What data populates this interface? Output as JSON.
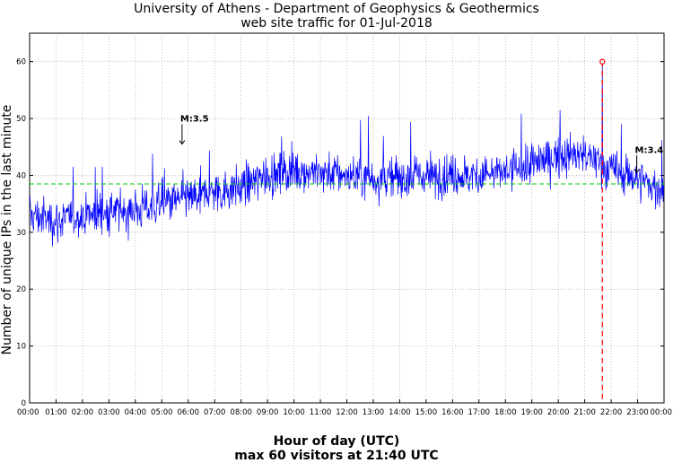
{
  "chart_data": {
    "type": "line",
    "title": "University of Athens - Department of Geophysics & Geothermics",
    "subtitle": "web site traffic for 01-Jul-2018",
    "xlabel": "Hour of day (UTC)",
    "caption": "max 60 visitors at 21:40 UTC",
    "ylabel": "Number of unique IPs in the last minute",
    "ylim": [
      0,
      65
    ],
    "yticks": [
      0,
      10,
      20,
      30,
      40,
      50,
      60
    ],
    "xlim_minutes": [
      0,
      1440
    ],
    "xtick_labels": [
      "00:00",
      "01:00",
      "02:00",
      "03:00",
      "04:00",
      "05:00",
      "06:00",
      "07:00",
      "08:00",
      "09:00",
      "10:00",
      "11:00",
      "12:00",
      "13:00",
      "14:00",
      "15:00",
      "16:00",
      "17:00",
      "18:00",
      "19:00",
      "20:00",
      "21:00",
      "22:00",
      "23:00",
      "00:00"
    ],
    "grid": true,
    "mean_line": 38.5,
    "max": {
      "time": "21:40",
      "value": 60
    },
    "trend": {
      "times": [
        "00:00",
        "01:00",
        "02:00",
        "03:00",
        "04:00",
        "05:00",
        "06:00",
        "07:00",
        "08:00",
        "09:00",
        "10:00",
        "11:00",
        "12:00",
        "13:00",
        "14:00",
        "15:00",
        "16:00",
        "17:00",
        "18:00",
        "19:00",
        "20:00",
        "21:00",
        "22:00",
        "23:00",
        "24:00"
      ],
      "values": [
        33,
        32,
        33,
        33.5,
        34,
        35,
        36,
        37,
        38,
        40,
        41,
        40.5,
        40,
        39.5,
        39.5,
        40,
        40,
        40,
        40.5,
        42,
        43.5,
        43.5,
        41,
        39.5,
        37
      ]
    },
    "annotations": [
      {
        "text": "M:3.5",
        "time": "05:46",
        "arrow_from": 49,
        "arrow_to": 45.5
      },
      {
        "text": "M:3.4",
        "time": "22:58",
        "arrow_from": 43.5,
        "arrow_to": 40.5
      }
    ],
    "colors": {
      "series": "#0000ff",
      "mean": "#00cc00",
      "max": "#ff0000"
    }
  }
}
